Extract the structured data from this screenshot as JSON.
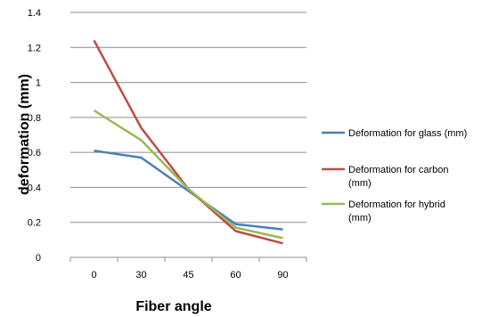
{
  "chart_data": {
    "type": "line",
    "categories": [
      "0",
      "30",
      "45",
      "60",
      "90"
    ],
    "series": [
      {
        "name": "Deformation for glass (mm)",
        "name_lines": [
          "Deformation for glass (mm)"
        ],
        "color": "#4a7ebb",
        "values": [
          0.61,
          0.57,
          0.38,
          0.19,
          0.16
        ]
      },
      {
        "name": "Deformation for carbon (mm)",
        "name_lines": [
          "Deformation for carbon",
          "(mm)"
        ],
        "color": "#be4b48",
        "values": [
          1.24,
          0.74,
          0.39,
          0.15,
          0.08
        ]
      },
      {
        "name": "Deformation for hybrid (mm)",
        "name_lines": [
          "Deformation for hybrid",
          "(mm)"
        ],
        "color": "#98b954",
        "values": [
          0.84,
          0.67,
          0.39,
          0.17,
          0.11
        ]
      }
    ],
    "xlabel": "Fiber angle",
    "ylabel": "deformation (mm)",
    "ylim": [
      0,
      1.4
    ],
    "yticks": [
      "0",
      "0.2",
      "0.4",
      "0.6",
      "0.8",
      "1",
      "1.2",
      "1.4"
    ],
    "grid": true,
    "legend": "right"
  }
}
